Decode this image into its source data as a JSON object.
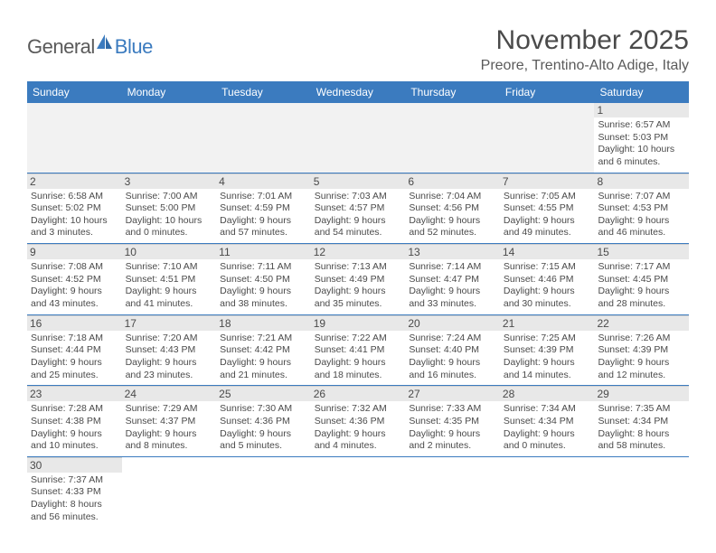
{
  "logo": {
    "general": "General",
    "blue": "Blue"
  },
  "title": "November 2025",
  "location": "Preore, Trentino-Alto Adige, Italy",
  "colors": {
    "header_bg": "#3b7bbf",
    "header_text": "#ffffff",
    "daynum_bg": "#e8e8e8",
    "text": "#4a4a4a",
    "empty_bg": "#f2f2f2",
    "rule": "#3b7bbf"
  },
  "weekdays": [
    "Sunday",
    "Monday",
    "Tuesday",
    "Wednesday",
    "Thursday",
    "Friday",
    "Saturday"
  ],
  "weeks": [
    [
      null,
      null,
      null,
      null,
      null,
      null,
      {
        "n": "1",
        "sr": "Sunrise: 6:57 AM",
        "ss": "Sunset: 5:03 PM",
        "d1": "Daylight: 10 hours",
        "d2": "and 6 minutes."
      }
    ],
    [
      {
        "n": "2",
        "sr": "Sunrise: 6:58 AM",
        "ss": "Sunset: 5:02 PM",
        "d1": "Daylight: 10 hours",
        "d2": "and 3 minutes."
      },
      {
        "n": "3",
        "sr": "Sunrise: 7:00 AM",
        "ss": "Sunset: 5:00 PM",
        "d1": "Daylight: 10 hours",
        "d2": "and 0 minutes."
      },
      {
        "n": "4",
        "sr": "Sunrise: 7:01 AM",
        "ss": "Sunset: 4:59 PM",
        "d1": "Daylight: 9 hours",
        "d2": "and 57 minutes."
      },
      {
        "n": "5",
        "sr": "Sunrise: 7:03 AM",
        "ss": "Sunset: 4:57 PM",
        "d1": "Daylight: 9 hours",
        "d2": "and 54 minutes."
      },
      {
        "n": "6",
        "sr": "Sunrise: 7:04 AM",
        "ss": "Sunset: 4:56 PM",
        "d1": "Daylight: 9 hours",
        "d2": "and 52 minutes."
      },
      {
        "n": "7",
        "sr": "Sunrise: 7:05 AM",
        "ss": "Sunset: 4:55 PM",
        "d1": "Daylight: 9 hours",
        "d2": "and 49 minutes."
      },
      {
        "n": "8",
        "sr": "Sunrise: 7:07 AM",
        "ss": "Sunset: 4:53 PM",
        "d1": "Daylight: 9 hours",
        "d2": "and 46 minutes."
      }
    ],
    [
      {
        "n": "9",
        "sr": "Sunrise: 7:08 AM",
        "ss": "Sunset: 4:52 PM",
        "d1": "Daylight: 9 hours",
        "d2": "and 43 minutes."
      },
      {
        "n": "10",
        "sr": "Sunrise: 7:10 AM",
        "ss": "Sunset: 4:51 PM",
        "d1": "Daylight: 9 hours",
        "d2": "and 41 minutes."
      },
      {
        "n": "11",
        "sr": "Sunrise: 7:11 AM",
        "ss": "Sunset: 4:50 PM",
        "d1": "Daylight: 9 hours",
        "d2": "and 38 minutes."
      },
      {
        "n": "12",
        "sr": "Sunrise: 7:13 AM",
        "ss": "Sunset: 4:49 PM",
        "d1": "Daylight: 9 hours",
        "d2": "and 35 minutes."
      },
      {
        "n": "13",
        "sr": "Sunrise: 7:14 AM",
        "ss": "Sunset: 4:47 PM",
        "d1": "Daylight: 9 hours",
        "d2": "and 33 minutes."
      },
      {
        "n": "14",
        "sr": "Sunrise: 7:15 AM",
        "ss": "Sunset: 4:46 PM",
        "d1": "Daylight: 9 hours",
        "d2": "and 30 minutes."
      },
      {
        "n": "15",
        "sr": "Sunrise: 7:17 AM",
        "ss": "Sunset: 4:45 PM",
        "d1": "Daylight: 9 hours",
        "d2": "and 28 minutes."
      }
    ],
    [
      {
        "n": "16",
        "sr": "Sunrise: 7:18 AM",
        "ss": "Sunset: 4:44 PM",
        "d1": "Daylight: 9 hours",
        "d2": "and 25 minutes."
      },
      {
        "n": "17",
        "sr": "Sunrise: 7:20 AM",
        "ss": "Sunset: 4:43 PM",
        "d1": "Daylight: 9 hours",
        "d2": "and 23 minutes."
      },
      {
        "n": "18",
        "sr": "Sunrise: 7:21 AM",
        "ss": "Sunset: 4:42 PM",
        "d1": "Daylight: 9 hours",
        "d2": "and 21 minutes."
      },
      {
        "n": "19",
        "sr": "Sunrise: 7:22 AM",
        "ss": "Sunset: 4:41 PM",
        "d1": "Daylight: 9 hours",
        "d2": "and 18 minutes."
      },
      {
        "n": "20",
        "sr": "Sunrise: 7:24 AM",
        "ss": "Sunset: 4:40 PM",
        "d1": "Daylight: 9 hours",
        "d2": "and 16 minutes."
      },
      {
        "n": "21",
        "sr": "Sunrise: 7:25 AM",
        "ss": "Sunset: 4:39 PM",
        "d1": "Daylight: 9 hours",
        "d2": "and 14 minutes."
      },
      {
        "n": "22",
        "sr": "Sunrise: 7:26 AM",
        "ss": "Sunset: 4:39 PM",
        "d1": "Daylight: 9 hours",
        "d2": "and 12 minutes."
      }
    ],
    [
      {
        "n": "23",
        "sr": "Sunrise: 7:28 AM",
        "ss": "Sunset: 4:38 PM",
        "d1": "Daylight: 9 hours",
        "d2": "and 10 minutes."
      },
      {
        "n": "24",
        "sr": "Sunrise: 7:29 AM",
        "ss": "Sunset: 4:37 PM",
        "d1": "Daylight: 9 hours",
        "d2": "and 8 minutes."
      },
      {
        "n": "25",
        "sr": "Sunrise: 7:30 AM",
        "ss": "Sunset: 4:36 PM",
        "d1": "Daylight: 9 hours",
        "d2": "and 5 minutes."
      },
      {
        "n": "26",
        "sr": "Sunrise: 7:32 AM",
        "ss": "Sunset: 4:36 PM",
        "d1": "Daylight: 9 hours",
        "d2": "and 4 minutes."
      },
      {
        "n": "27",
        "sr": "Sunrise: 7:33 AM",
        "ss": "Sunset: 4:35 PM",
        "d1": "Daylight: 9 hours",
        "d2": "and 2 minutes."
      },
      {
        "n": "28",
        "sr": "Sunrise: 7:34 AM",
        "ss": "Sunset: 4:34 PM",
        "d1": "Daylight: 9 hours",
        "d2": "and 0 minutes."
      },
      {
        "n": "29",
        "sr": "Sunrise: 7:35 AM",
        "ss": "Sunset: 4:34 PM",
        "d1": "Daylight: 8 hours",
        "d2": "and 58 minutes."
      }
    ],
    [
      {
        "n": "30",
        "sr": "Sunrise: 7:37 AM",
        "ss": "Sunset: 4:33 PM",
        "d1": "Daylight: 8 hours",
        "d2": "and 56 minutes."
      },
      null,
      null,
      null,
      null,
      null,
      null
    ]
  ]
}
